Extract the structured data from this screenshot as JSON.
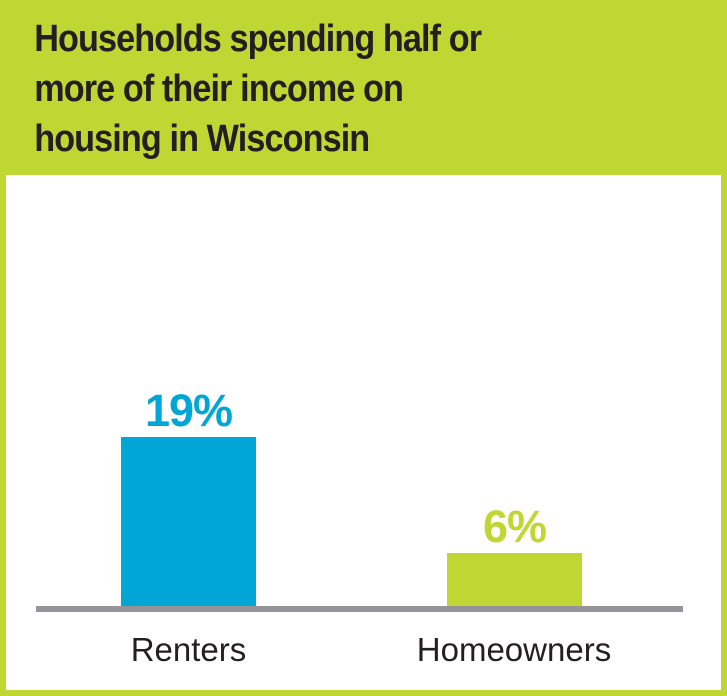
{
  "header": {
    "title_lines": [
      "Households spending half or",
      "more of their income on",
      "housing in Wisconsin"
    ]
  },
  "chart_data": {
    "type": "bar",
    "title": "Households spending half or more of their income on housing in Wisconsin",
    "categories": [
      "Renters",
      "Homeowners"
    ],
    "values": [
      19,
      6
    ],
    "value_labels": [
      "19%",
      "6%"
    ],
    "bar_colors": [
      "#00a7d6",
      "#bfd733"
    ],
    "label_colors": [
      "#00a7d6",
      "#bfd733"
    ],
    "xlabel": "",
    "ylabel": "",
    "grid": false,
    "legend": false
  },
  "colors": {
    "accent_green": "#bfd733",
    "accent_blue": "#00a7d6",
    "axis_gray": "#939598",
    "text_dark": "#231f20",
    "background": "#ffffff"
  }
}
